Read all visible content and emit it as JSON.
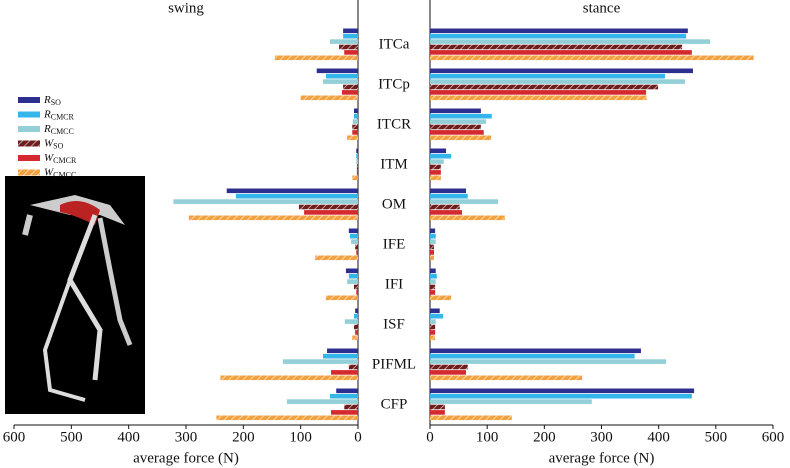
{
  "chart_data": [
    {
      "type": "hbar",
      "title": "swing",
      "x_label": "average force (N)",
      "categories": [
        "ITCa",
        "ITCp",
        "ITCR",
        "ITM",
        "OM",
        "IFE",
        "IFI",
        "ISF",
        "PIFML",
        "CFP"
      ],
      "xlim": [
        600,
        0
      ],
      "xticks": [
        600,
        500,
        400,
        300,
        200,
        100,
        0
      ],
      "series": [
        {
          "name": "R",
          "name_subscript": "SO",
          "color": "#2c2f8e",
          "hatch": false,
          "values": [
            26,
            72,
            7,
            3,
            229,
            16,
            21,
            5,
            54,
            38
          ]
        },
        {
          "name": "R",
          "name_subscript": "CMCR",
          "color": "#35b6ea",
          "hatch": false,
          "values": [
            26,
            56,
            7,
            3,
            213,
            14,
            16,
            7,
            61,
            49
          ]
        },
        {
          "name": "R",
          "name_subscript": "CMCC",
          "color": "#93cfd6",
          "hatch": false,
          "values": [
            49,
            61,
            9,
            3,
            322,
            12,
            19,
            23,
            131,
            124
          ]
        },
        {
          "name": "W",
          "name_subscript": "SO",
          "color": "#6e1c1c",
          "hatch": true,
          "values": [
            33,
            26,
            10,
            2,
            103,
            5,
            7,
            7,
            16,
            24
          ]
        },
        {
          "name": "W",
          "name_subscript": "CMCR",
          "color": "#d4292e",
          "hatch": false,
          "values": [
            24,
            28,
            10,
            2,
            94,
            3,
            3,
            5,
            47,
            47
          ]
        },
        {
          "name": "W",
          "name_subscript": "CMCC",
          "color": "#f2a13e",
          "hatch": true,
          "values": [
            145,
            100,
            19,
            10,
            295,
            75,
            56,
            10,
            240,
            247
          ]
        }
      ]
    },
    {
      "type": "hbar",
      "title": "stance",
      "x_label": "average force (N)",
      "xlim": [
        0,
        600
      ],
      "xticks": [
        0,
        100,
        200,
        300,
        400,
        500,
        600
      ],
      "series": [
        {
          "color": "#2c2f8e",
          "hatch": false,
          "values": [
            451,
            460,
            89,
            28,
            63,
            9,
            10,
            17,
            369,
            462
          ]
        },
        {
          "color": "#35b6ea",
          "hatch": false,
          "values": [
            448,
            411,
            108,
            37,
            66,
            10,
            12,
            23,
            358,
            458
          ]
        },
        {
          "color": "#93cfd6",
          "hatch": false,
          "values": [
            490,
            446,
            98,
            24,
            119,
            10,
            10,
            10,
            413,
            283
          ]
        },
        {
          "color": "#6e1c1c",
          "hatch": true,
          "values": [
            441,
            399,
            89,
            19,
            52,
            7,
            9,
            9,
            66,
            26
          ]
        },
        {
          "color": "#d4292e",
          "hatch": false,
          "values": [
            458,
            378,
            94,
            19,
            56,
            7,
            9,
            9,
            63,
            26
          ]
        },
        {
          "color": "#f2a13e",
          "hatch": true,
          "values": [
            566,
            379,
            107,
            19,
            131,
            7,
            37,
            9,
            266,
            143
          ]
        }
      ]
    }
  ]
}
